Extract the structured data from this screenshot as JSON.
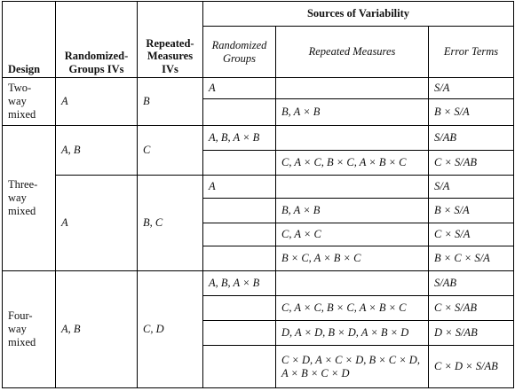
{
  "header": {
    "design": "Design",
    "rg_ivs": "Randomized-Groups IVs",
    "rm_ivs": "Repeated-Measures IVs",
    "sources": "Sources of Variability",
    "randomized_groups": "Randomized Groups",
    "repeated_measures": "Repeated Measures",
    "error_terms": "Error Terms"
  },
  "groups": [
    {
      "design": "Two-way mixed",
      "blocks": [
        {
          "rg": "A",
          "rm": "B",
          "rows": [
            [
              "A",
              null,
              "S/A"
            ],
            [
              null,
              "B, A × B",
              "B × S/A"
            ]
          ]
        }
      ]
    },
    {
      "design": "Three-way mixed",
      "blocks": [
        {
          "rg": "A, B",
          "rm": "C",
          "rows": [
            [
              "A, B, A × B",
              null,
              "S/AB"
            ],
            [
              null,
              "C, A × C, B × C, A × B × C",
              "C × S/AB"
            ]
          ]
        },
        {
          "rg": "A",
          "rm": "B, C",
          "rows": [
            [
              "A",
              null,
              "S/A"
            ],
            [
              null,
              "B, A × B",
              "B × S/A"
            ],
            [
              null,
              "C, A × C",
              "C × S/A"
            ],
            [
              null,
              "B × C, A × B × C",
              "B × C × S/A"
            ]
          ]
        }
      ]
    },
    {
      "design": "Four-way mixed",
      "blocks": [
        {
          "rg": "A, B",
          "rm": "C, D",
          "rows": [
            [
              "A, B, A × B",
              null,
              "S/AB"
            ],
            [
              null,
              "C, A × C, B × C, A × B × C",
              "C × S/AB"
            ],
            [
              null,
              "D, A × D, B × D, A × B × D",
              "D × S/AB"
            ],
            [
              null,
              "C × D, A × C × D, B × C × D, A × B × C × D",
              "C × D × S/AB"
            ]
          ]
        }
      ]
    }
  ]
}
